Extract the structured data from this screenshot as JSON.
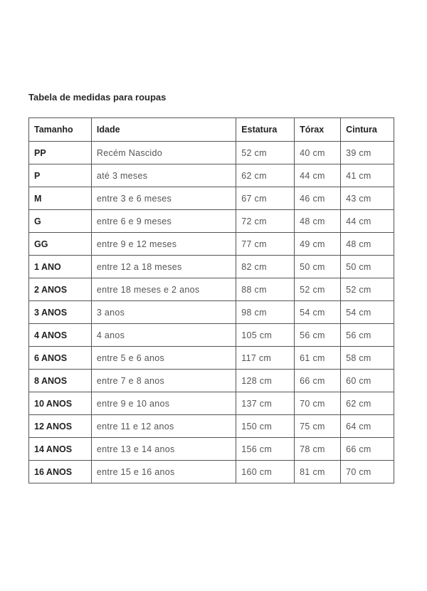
{
  "title": "Tabela de medidas para roupas",
  "headers": [
    "Tamanho",
    "Idade",
    "Estatura",
    "Tórax",
    "Cintura"
  ],
  "rows": [
    [
      "PP",
      "Recém Nascido",
      "52 cm",
      "40 cm",
      "39 cm"
    ],
    [
      "P",
      "até 3 meses",
      "62 cm",
      "44 cm",
      "41 cm"
    ],
    [
      "M",
      "entre 3 e 6 meses",
      "67 cm",
      "46 cm",
      "43 cm"
    ],
    [
      "G",
      "entre 6 e 9 meses",
      "72 cm",
      "48 cm",
      "44 cm"
    ],
    [
      "GG",
      "entre 9 e 12 meses",
      "77 cm",
      "49 cm",
      "48 cm"
    ],
    [
      "1 ANO",
      "entre 12 a 18 meses",
      "82 cm",
      "50 cm",
      "50 cm"
    ],
    [
      "2 ANOS",
      "entre 18 meses e 2 anos",
      "88 cm",
      "52 cm",
      "52 cm"
    ],
    [
      "3 ANOS",
      "3 anos",
      "98 cm",
      "54 cm",
      "54 cm"
    ],
    [
      "4 ANOS",
      "4 anos",
      "105 cm",
      "56 cm",
      "56 cm"
    ],
    [
      "6 ANOS",
      "entre 5 e 6 anos",
      "117 cm",
      "61 cm",
      "58 cm"
    ],
    [
      "8 ANOS",
      "entre 7 e 8 anos",
      "128 cm",
      "66 cm",
      "60 cm"
    ],
    [
      "10 ANOS",
      "entre 9 e 10 anos",
      "137 cm",
      "70 cm",
      "62 cm"
    ],
    [
      "12 ANOS",
      "entre 11 e 12 anos",
      "150 cm",
      "75 cm",
      "64 cm"
    ],
    [
      "14 ANOS",
      "entre 13 e 14 anos",
      "156 cm",
      "78 cm",
      "66 cm"
    ],
    [
      "16 ANOS",
      "entre 15 e 16 anos",
      "160 cm",
      "81 cm",
      "70 cm"
    ]
  ]
}
